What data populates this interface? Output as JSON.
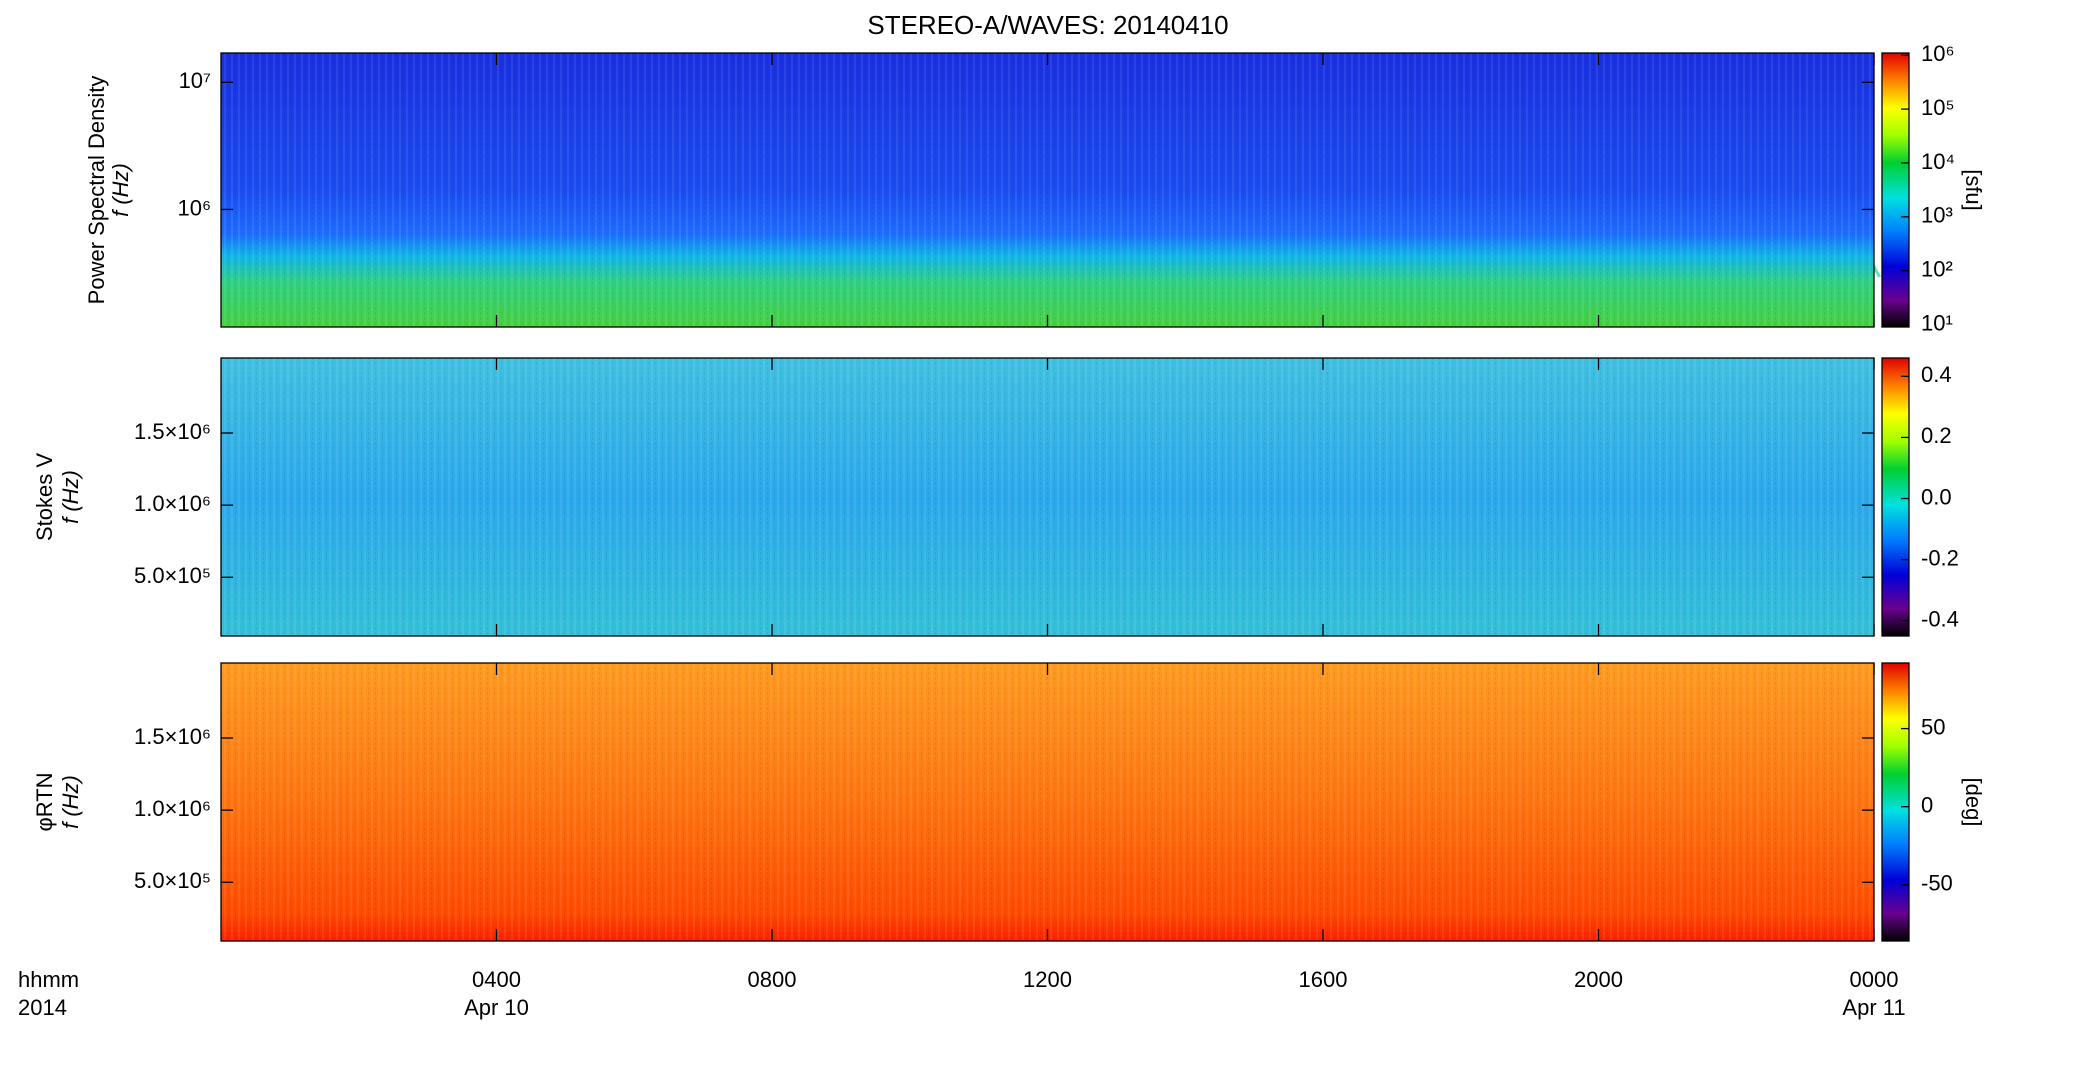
{
  "chart_data": [
    {
      "type": "heatmap",
      "title": "STEREO-A/WAVES: 20140410",
      "ylabel": "Power Spectral Density",
      "ylabel2": "f (Hz)",
      "ylog": true,
      "ylim": [
        119000,
        17000000
      ],
      "yticks": [
        {
          "value": 1000000,
          "label": "10⁶"
        },
        {
          "value": 10000000,
          "label": "10⁷"
        }
      ],
      "xlim": [
        0,
        24
      ],
      "xticks": [
        4,
        8,
        12,
        16,
        20,
        24
      ],
      "clog": true,
      "clim": [
        9,
        1100000
      ],
      "clabel": "[sfu]",
      "cticks": [
        {
          "value": 10,
          "label": "10¹"
        },
        {
          "value": 100,
          "label": "10²"
        },
        {
          "value": 1000,
          "label": "10³"
        },
        {
          "value": 10000,
          "label": "10⁴"
        },
        {
          "value": 100000,
          "label": "10⁵"
        },
        {
          "value": 1000000,
          "label": "10⁶"
        }
      ]
    },
    {
      "type": "heatmap",
      "ylabel": "Stokes V",
      "ylabel2": "f (Hz)",
      "ylog": false,
      "ylim": [
        93000,
        2020000
      ],
      "yticks": [
        {
          "value": 500000,
          "label": "5.0×10⁵"
        },
        {
          "value": 1000000,
          "label": "1.0×10⁶"
        },
        {
          "value": 1500000,
          "label": "1.5×10⁶"
        }
      ],
      "xlim": [
        0,
        24
      ],
      "xticks": [
        4,
        8,
        12,
        16,
        20,
        24
      ],
      "clog": false,
      "clim": [
        -0.45,
        0.46
      ],
      "cticks": [
        -0.4,
        -0.2,
        {
          "value": 0,
          "label": "0.0"
        },
        0.2,
        0.4
      ]
    },
    {
      "type": "heatmap",
      "ylabel": "φRTN",
      "ylabel2": "f (Hz)",
      "ylog": false,
      "ylim": [
        93000,
        2020000
      ],
      "yticks": [
        {
          "value": 500000,
          "label": "5.0×10⁵"
        },
        {
          "value": 1000000,
          "label": "1.0×10⁶"
        },
        {
          "value": 1500000,
          "label": "1.5×10⁶"
        }
      ],
      "xlim": [
        0,
        24
      ],
      "xticks": [
        {
          "value": 4,
          "label": "0400"
        },
        {
          "value": 8,
          "label": "0800"
        },
        {
          "value": 12,
          "label": "1200"
        },
        {
          "value": 16,
          "label": "1600"
        },
        {
          "value": 20,
          "label": "2000"
        },
        {
          "value": 24,
          "label": "0000"
        }
      ],
      "date_labels": [
        {
          "value": 4,
          "label": "Apr 10"
        },
        {
          "value": 24,
          "label": "Apr 11"
        }
      ],
      "xlabel": "hhmm",
      "xlabel2": "2014",
      "clog": false,
      "clim": [
        -86,
        92
      ],
      "clabel": "[deg]",
      "cticks": [
        -50,
        0,
        50
      ]
    }
  ]
}
